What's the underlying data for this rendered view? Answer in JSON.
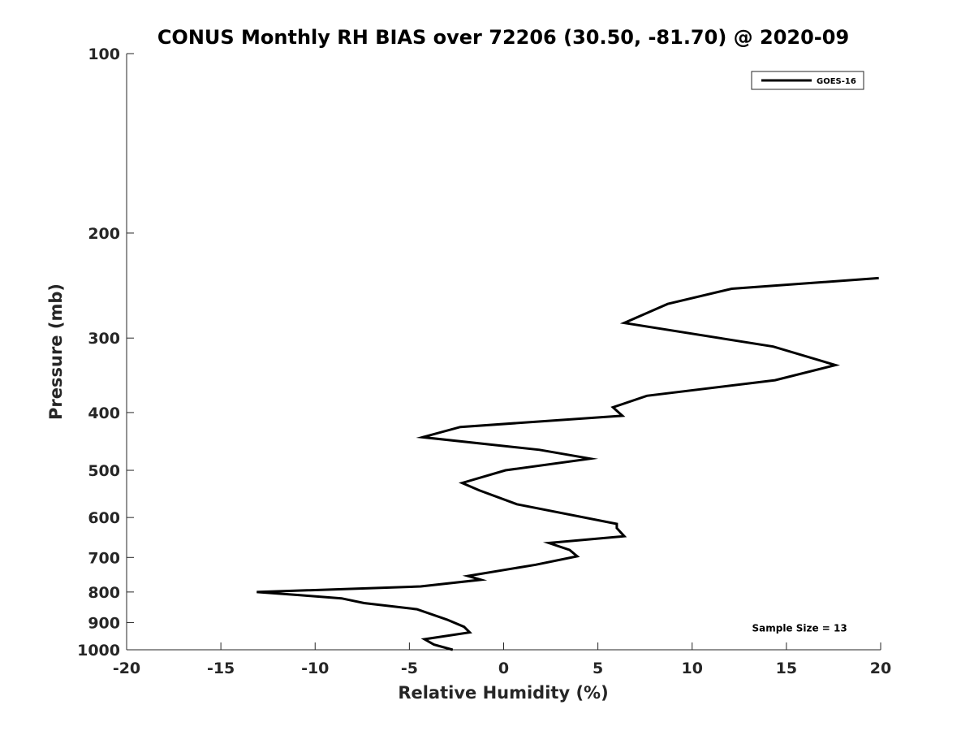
{
  "chart_data": {
    "type": "line",
    "title": "CONUS Monthly RH BIAS over 72206 (30.50, -81.70) @ 2020-09",
    "xlabel": "Relative Humidity (%)",
    "ylabel": "Pressure (mb)",
    "xlim": [
      -20,
      20
    ],
    "ylim": [
      100,
      1000
    ],
    "y_scale": "log",
    "y_direction": "reversed",
    "x_ticks": [
      -20,
      -15,
      -10,
      -5,
      0,
      5,
      10,
      15,
      20
    ],
    "x_tick_labels": [
      "-20",
      "-15",
      "-10",
      "-5",
      "0",
      "5",
      "10",
      "15",
      "20"
    ],
    "y_ticks": [
      100,
      200,
      300,
      400,
      500,
      600,
      700,
      800,
      900,
      1000
    ],
    "y_tick_labels": [
      "100",
      "200",
      "300",
      "400",
      "500",
      "600",
      "700",
      "800",
      "900",
      "1000"
    ],
    "grid": false,
    "legend_position": "top-right",
    "series": [
      {
        "name": "GOES-16",
        "color": "#000000",
        "points": [
          [
            -2.7,
            1000
          ],
          [
            -3.7,
            980
          ],
          [
            -4.2,
            960
          ],
          [
            -1.8,
            935
          ],
          [
            -2.1,
            915
          ],
          [
            -3.0,
            890
          ],
          [
            -4.6,
            855
          ],
          [
            -7.4,
            835
          ],
          [
            -8.6,
            820
          ],
          [
            -10.8,
            810
          ],
          [
            -13.1,
            800
          ],
          [
            -4.4,
            783
          ],
          [
            -1.2,
            763
          ],
          [
            -1.9,
            752
          ],
          [
            1.7,
            720
          ],
          [
            3.9,
            697
          ],
          [
            3.5,
            680
          ],
          [
            2.4,
            662
          ],
          [
            6.4,
            645
          ],
          [
            6.0,
            625
          ],
          [
            6.0,
            615
          ],
          [
            0.7,
            570
          ],
          [
            -1.3,
            540
          ],
          [
            -2.2,
            525
          ],
          [
            0.1,
            500
          ],
          [
            4.6,
            478
          ],
          [
            1.9,
            462
          ],
          [
            -4.3,
            440
          ],
          [
            -2.3,
            423
          ],
          [
            6.3,
            405
          ],
          [
            5.8,
            392
          ],
          [
            7.6,
            375
          ],
          [
            14.4,
            353
          ],
          [
            17.6,
            333
          ],
          [
            14.3,
            310
          ],
          [
            6.4,
            283
          ],
          [
            8.7,
            263
          ],
          [
            12.1,
            248
          ],
          [
            19.9,
            238
          ]
        ]
      }
    ],
    "annotations": [
      {
        "text": "Sample Size = 13",
        "x": 15.7,
        "y": 920
      }
    ]
  }
}
